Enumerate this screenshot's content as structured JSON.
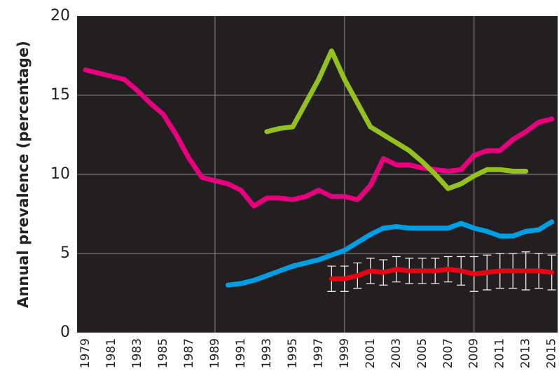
{
  "chart_data": {
    "type": "line",
    "y_label": "Annual prevalence (percentage)",
    "xlim": [
      1978.35,
      2015.45
    ],
    "ylim": [
      0,
      20
    ],
    "xticks": [
      1979,
      1981,
      1983,
      1985,
      1987,
      1989,
      1991,
      1993,
      1995,
      1997,
      1999,
      2001,
      2003,
      2005,
      2007,
      2009,
      2011,
      2013,
      2015
    ],
    "xgrid": [
      1989,
      1999,
      2009
    ],
    "yticks": [
      0,
      5,
      10,
      15,
      20
    ],
    "grid": true,
    "background": "#231f20",
    "series": [
      {
        "color": "#e6007e",
        "x": [
          1979,
          1980,
          1981,
          1982,
          1983,
          1984,
          1985,
          1986,
          1987,
          1988,
          1989,
          1990,
          1991,
          1992,
          1993,
          1994,
          1995,
          1996,
          1997,
          1998,
          1999,
          2000,
          2001,
          2002,
          2003,
          2004,
          2005,
          2006,
          2007,
          2008,
          2009,
          2010,
          2011,
          2012,
          2013,
          2014,
          2015
        ],
        "values": [
          16.6,
          16.4,
          16.2,
          16.0,
          15.3,
          14.5,
          13.8,
          12.5,
          11.0,
          9.8,
          9.6,
          9.4,
          9.0,
          8.0,
          8.5,
          8.5,
          8.4,
          8.6,
          9.0,
          8.6,
          8.6,
          8.4,
          9.3,
          11.0,
          10.6,
          10.6,
          10.4,
          10.3,
          10.2,
          10.3,
          11.2,
          11.5,
          11.5,
          12.2,
          12.7,
          13.3,
          13.5
        ]
      },
      {
        "color": "#95c11f",
        "x": [
          1993,
          1994,
          1995,
          1996,
          1997,
          1998,
          1999,
          2000,
          2001,
          2002,
          2003,
          2004,
          2005,
          2006,
          2007,
          2008,
          2009,
          2010,
          2011,
          2012,
          2013
        ],
        "values": [
          12.7,
          12.9,
          13.0,
          14.5,
          16.0,
          17.8,
          16.0,
          14.5,
          13.0,
          12.5,
          12.0,
          11.5,
          10.8,
          10.0,
          9.1,
          9.4,
          9.9,
          10.3,
          10.3,
          10.2,
          10.2
        ]
      },
      {
        "color": "#009fe3",
        "x": [
          1990,
          1991,
          1992,
          1993,
          1994,
          1995,
          1996,
          1997,
          1998,
          1999,
          2000,
          2001,
          2002,
          2003,
          2004,
          2005,
          2006,
          2007,
          2008,
          2009,
          2010,
          2011,
          2012,
          2013,
          2014,
          2015
        ],
        "values": [
          3.0,
          3.1,
          3.3,
          3.6,
          3.9,
          4.2,
          4.4,
          4.6,
          4.9,
          5.2,
          5.7,
          6.2,
          6.6,
          6.7,
          6.6,
          6.6,
          6.6,
          6.6,
          6.9,
          6.6,
          6.4,
          6.1,
          6.1,
          6.4,
          6.5,
          7.0
        ]
      },
      {
        "color": "#e30613",
        "error_color": "#ffffff",
        "x": [
          1998,
          1999,
          2000,
          2001,
          2002,
          2003,
          2004,
          2005,
          2006,
          2007,
          2008,
          2009,
          2010,
          2011,
          2012,
          2013,
          2014,
          2015
        ],
        "values": [
          3.4,
          3.4,
          3.6,
          3.9,
          3.8,
          4.0,
          3.9,
          3.9,
          3.9,
          4.0,
          3.9,
          3.7,
          3.8,
          3.9,
          3.9,
          3.9,
          3.9,
          3.8
        ],
        "errors": [
          0.8,
          0.8,
          0.8,
          0.8,
          0.8,
          0.8,
          0.8,
          0.8,
          0.8,
          0.8,
          0.9,
          1.1,
          1.1,
          1.1,
          1.1,
          1.2,
          1.1,
          1.1
        ]
      }
    ]
  }
}
